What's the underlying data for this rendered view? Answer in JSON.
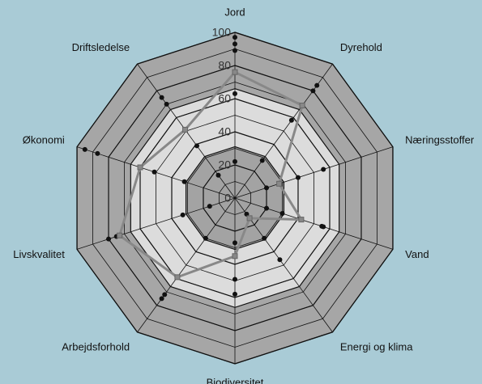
{
  "chart_data": {
    "type": "radar",
    "categories": [
      "Jord",
      "Dyrehold",
      "Næringsstoffer",
      "Vand",
      "Energi og klima",
      "Biodiversitet",
      "Arbejdsforhold",
      "Livskvalitet",
      "Økonomi",
      "Driftsledelse"
    ],
    "rlim": [
      0,
      100
    ],
    "rticks": [
      0,
      20,
      40,
      60,
      80,
      100
    ],
    "series": [
      {
        "color": "#111111",
        "marker": "dot",
        "values": [
          97,
          84,
          56,
          56,
          46,
          58,
          75,
          80,
          95,
          75
        ]
      },
      {
        "color": "#111111",
        "marker": "dot",
        "values": [
          93,
          80,
          40,
          55,
          30,
          49,
          72,
          75,
          87,
          70
        ]
      },
      {
        "color": "#111111",
        "marker": "dot",
        "values": [
          89,
          58,
          20,
          30,
          12,
          27,
          30,
          33,
          51,
          39
        ]
      },
      {
        "color": "#111111",
        "marker": "dot",
        "values": [
          63,
          28,
          null,
          20,
          null,
          null,
          null,
          16,
          32,
          17
        ]
      },
      {
        "color": "#111111",
        "marker": "dot",
        "values": [
          22,
          null,
          null,
          null,
          null,
          null,
          null,
          null,
          null,
          null
        ]
      },
      {
        "color": "#888888",
        "marker": "square",
        "values": [
          76,
          69,
          28,
          42,
          15,
          35,
          59,
          73,
          60,
          51
        ]
      }
    ]
  }
}
